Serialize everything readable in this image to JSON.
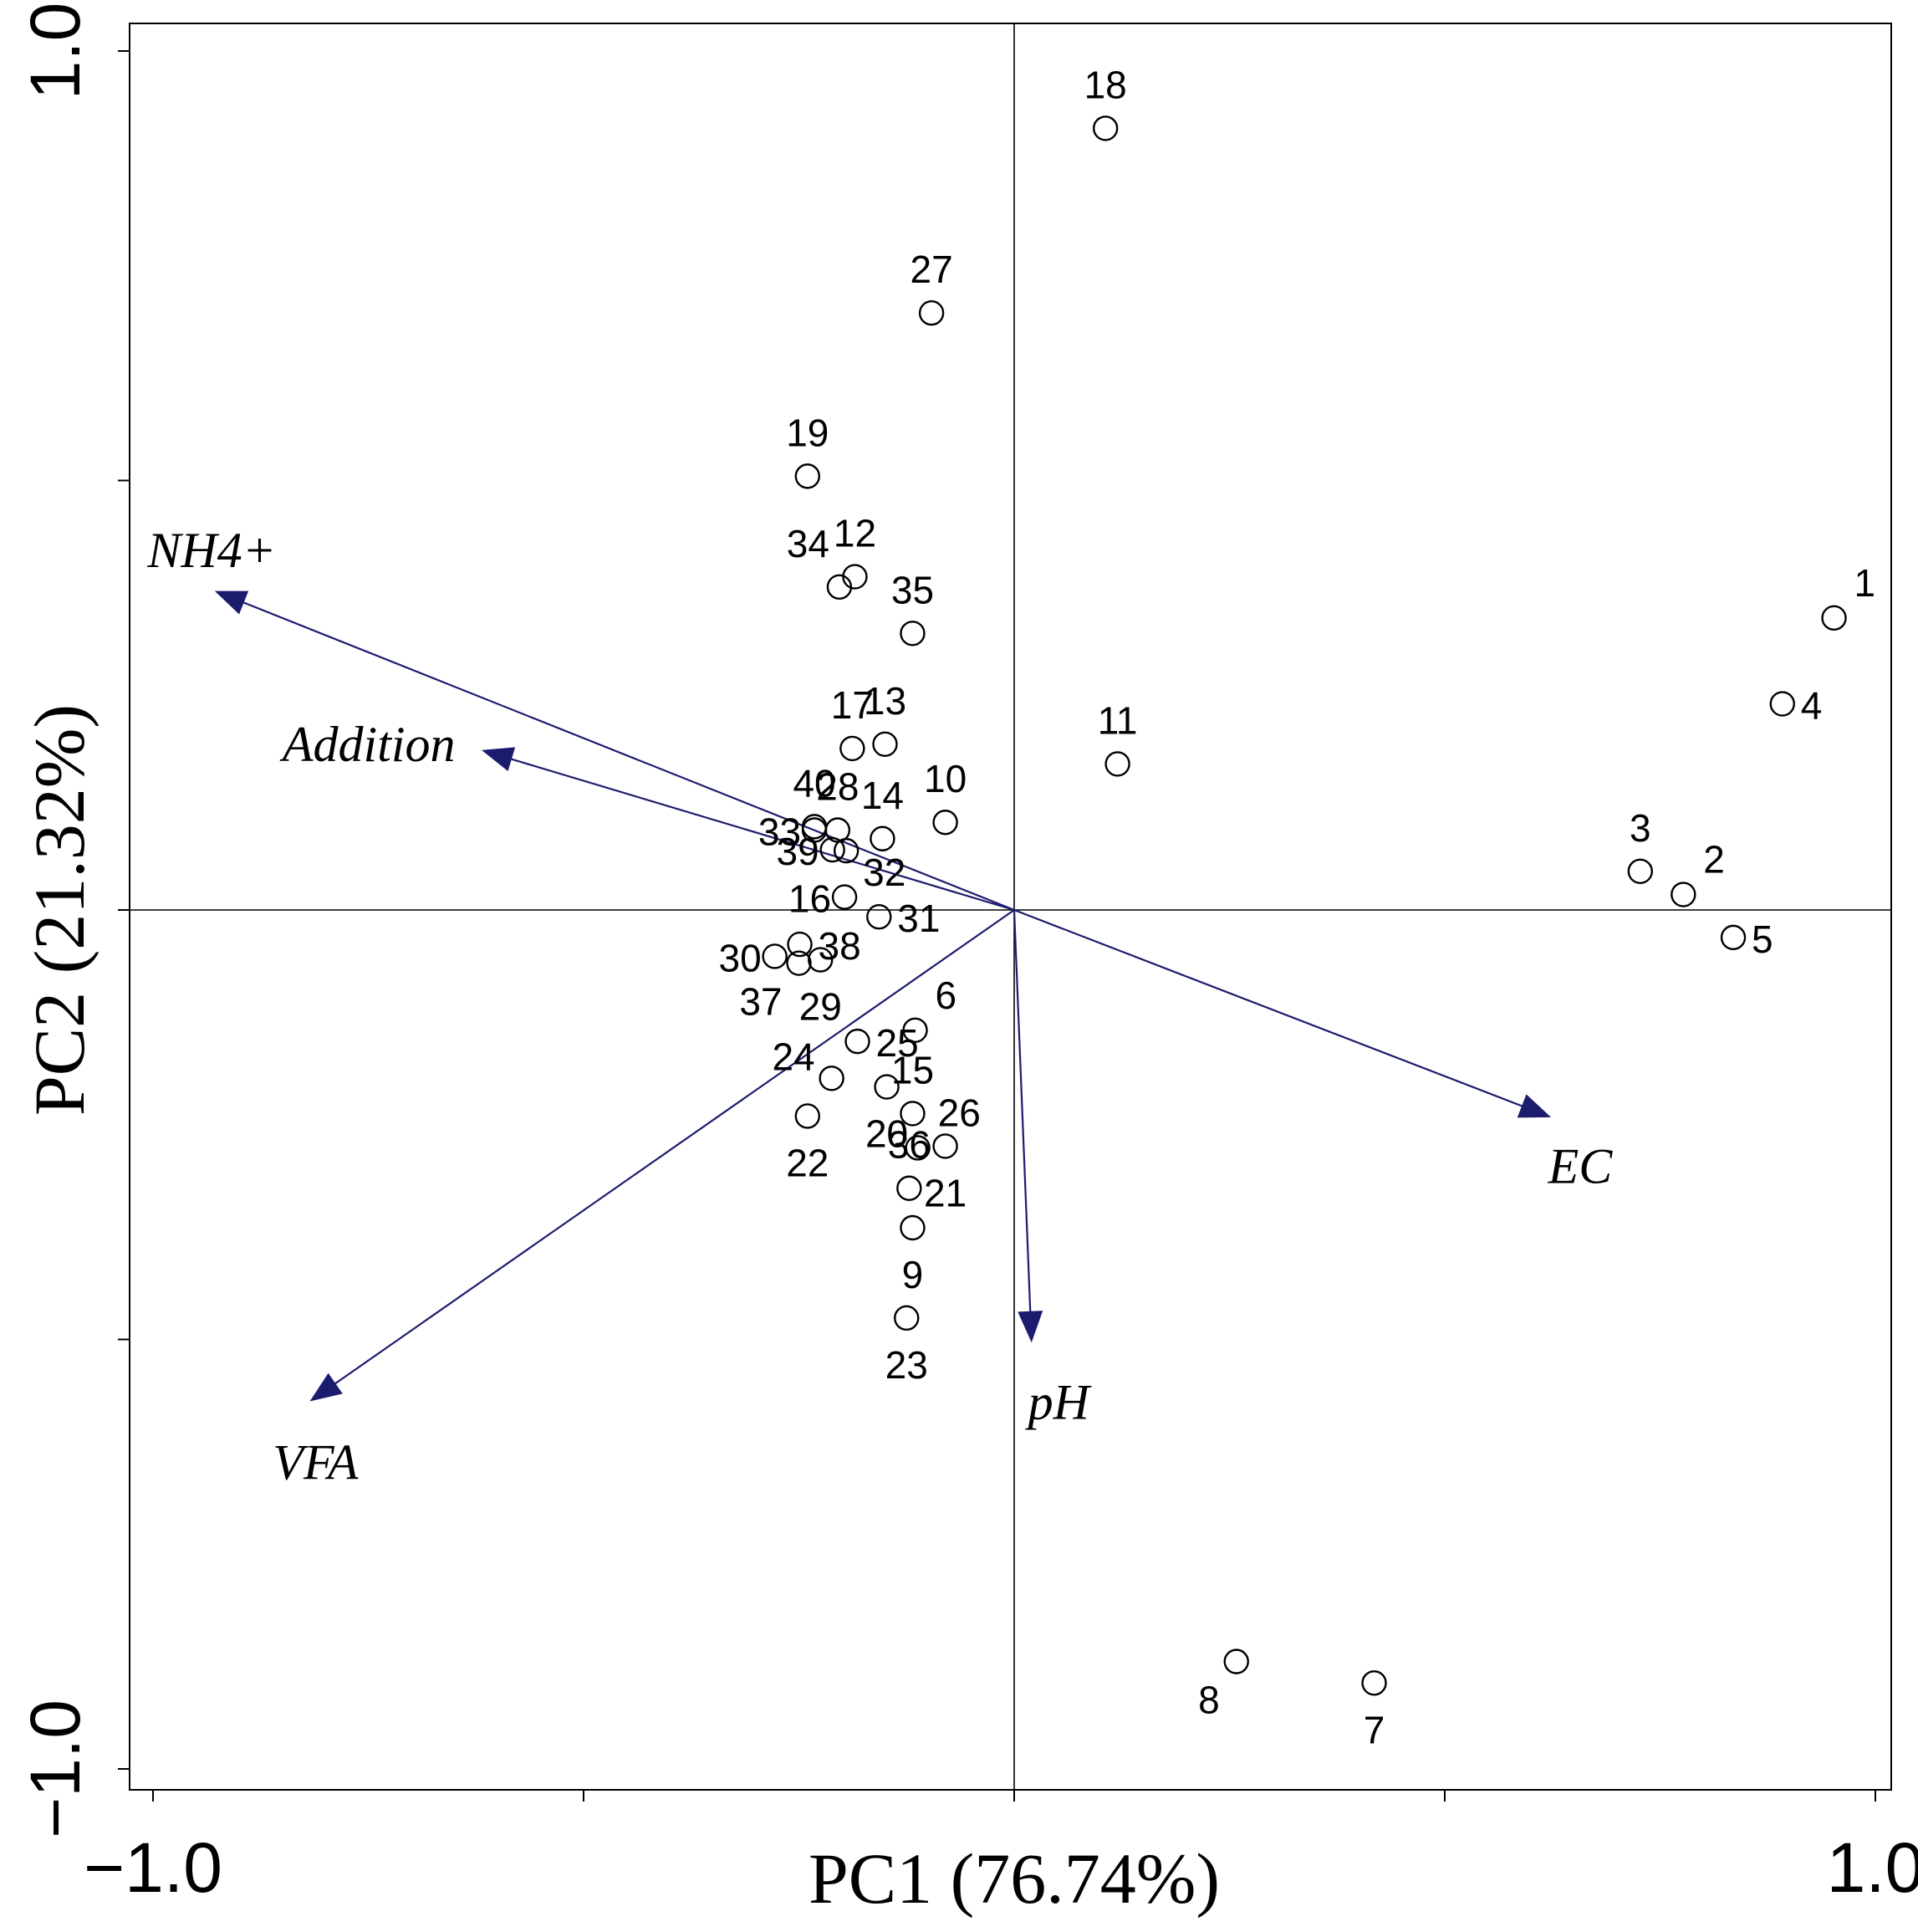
{
  "chart_data": {
    "type": "scatter",
    "subtype": "pca-biplot",
    "title": "",
    "xlabel": "PC1 (76.74%)",
    "ylabel": "PC2 (21.32%)",
    "xlim": [
      -1.0,
      1.0
    ],
    "ylim": [
      -1.0,
      1.0
    ],
    "x_tick_labels": [
      {
        "value": -1.0,
        "label": "−1.0"
      },
      {
        "value": 1.0,
        "label": "1.0"
      }
    ],
    "y_tick_labels": [
      {
        "value": -1.0,
        "label": "−1.0"
      },
      {
        "value": 1.0,
        "label": "1.0"
      }
    ],
    "minor_tick_values": [
      -1.0,
      -0.5,
      0.0,
      0.5,
      1.0
    ],
    "zero_lines": true,
    "grid": false,
    "arrow_color": "#1c1c6e",
    "axis_color": "#000000",
    "vectors": [
      {
        "name": "NH4+",
        "x": -0.925,
        "y": 0.37,
        "label_anchor": "above-left"
      },
      {
        "name": "Addition",
        "x": -0.615,
        "y": 0.185,
        "label_anchor": "left"
      },
      {
        "name": "VFA",
        "x": -0.815,
        "y": -0.57,
        "label_anchor": "below-left"
      },
      {
        "name": "pH",
        "x": 0.02,
        "y": -0.5,
        "label_anchor": "below"
      },
      {
        "name": "EC",
        "x": 0.62,
        "y": -0.24,
        "label_anchor": "below-right"
      }
    ],
    "samples": [
      {
        "id": "1",
        "x": 0.952,
        "y": 0.34,
        "label_pos": "right-up"
      },
      {
        "id": "2",
        "x": 0.777,
        "y": 0.018,
        "label_pos": "right-up"
      },
      {
        "id": "3",
        "x": 0.727,
        "y": 0.045,
        "label_pos": "up"
      },
      {
        "id": "4",
        "x": 0.892,
        "y": 0.24,
        "label_pos": "right"
      },
      {
        "id": "5",
        "x": 0.835,
        "y": -0.032,
        "label_pos": "right"
      },
      {
        "id": "6",
        "x": -0.115,
        "y": -0.14,
        "label_pos": "right-up"
      },
      {
        "id": "7",
        "x": 0.418,
        "y": -0.9,
        "label_pos": "down"
      },
      {
        "id": "8",
        "x": 0.258,
        "y": -0.875,
        "label_pos": "down-left"
      },
      {
        "id": "9",
        "x": -0.118,
        "y": -0.37,
        "label_pos": "down"
      },
      {
        "id": "10",
        "x": -0.08,
        "y": 0.102,
        "label_pos": "up"
      },
      {
        "id": "11",
        "x": 0.12,
        "y": 0.17,
        "label_pos": "up"
      },
      {
        "id": "12",
        "x": -0.185,
        "y": 0.388,
        "label_pos": "up"
      },
      {
        "id": "13",
        "x": -0.15,
        "y": 0.193,
        "label_pos": "up"
      },
      {
        "id": "14",
        "x": -0.153,
        "y": 0.083,
        "label_pos": "up"
      },
      {
        "id": "15",
        "x": -0.118,
        "y": -0.237,
        "label_pos": "up"
      },
      {
        "id": "16",
        "x": -0.197,
        "y": 0.015,
        "label_pos": "left"
      },
      {
        "id": "17",
        "x": -0.188,
        "y": 0.188,
        "label_pos": "up"
      },
      {
        "id": "18",
        "x": 0.106,
        "y": 0.91,
        "label_pos": "up"
      },
      {
        "id": "19",
        "x": -0.24,
        "y": 0.505,
        "label_pos": "up"
      },
      {
        "id": "20",
        "x": -0.148,
        "y": -0.206,
        "label_pos": "down"
      },
      {
        "id": "21",
        "x": -0.08,
        "y": -0.275,
        "label_pos": "down"
      },
      {
        "id": "22",
        "x": -0.24,
        "y": -0.24,
        "label_pos": "down"
      },
      {
        "id": "23",
        "x": -0.125,
        "y": -0.475,
        "label_pos": "down"
      },
      {
        "id": "24",
        "x": -0.212,
        "y": -0.196,
        "label_pos": "left-up"
      },
      {
        "id": "25",
        "x": -0.182,
        "y": -0.153,
        "label_pos": "right"
      },
      {
        "id": "26",
        "x": -0.112,
        "y": -0.277,
        "label_pos": "right-up"
      },
      {
        "id": "27",
        "x": -0.096,
        "y": 0.695,
        "label_pos": "up"
      },
      {
        "id": "28",
        "x": -0.205,
        "y": 0.093,
        "label_pos": "up"
      },
      {
        "id": "29",
        "x": -0.225,
        "y": -0.058,
        "label_pos": "down"
      },
      {
        "id": "30",
        "x": -0.278,
        "y": -0.054,
        "label_pos": "left"
      },
      {
        "id": "31",
        "x": -0.157,
        "y": -0.008,
        "label_pos": "right"
      },
      {
        "id": "32",
        "x": -0.195,
        "y": 0.069,
        "label_pos": "right-down"
      },
      {
        "id": "33",
        "x": -0.232,
        "y": 0.093,
        "label_pos": "left"
      },
      {
        "id": "34",
        "x": -0.203,
        "y": 0.376,
        "label_pos": "up-left"
      },
      {
        "id": "35",
        "x": -0.118,
        "y": 0.322,
        "label_pos": "up"
      },
      {
        "id": "36",
        "x": -0.122,
        "y": -0.324,
        "label_pos": "up"
      },
      {
        "id": "37",
        "x": -0.25,
        "y": -0.062,
        "label_pos": "down-left"
      },
      {
        "id": "38",
        "x": -0.249,
        "y": -0.04,
        "label_pos": "right"
      },
      {
        "id": "39",
        "x": -0.211,
        "y": 0.07,
        "label_pos": "left"
      },
      {
        "id": "40",
        "x": -0.232,
        "y": 0.097,
        "label_pos": "up"
      }
    ]
  }
}
